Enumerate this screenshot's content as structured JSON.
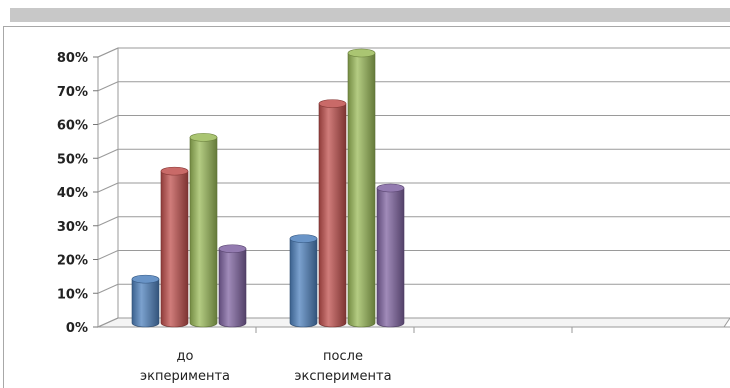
{
  "chart_data": {
    "type": "bar",
    "categories": [
      [
        "до",
        "экперимента"
      ],
      [
        "после",
        "эксперимента"
      ],
      [
        "",
        ""
      ],
      [
        "",
        ""
      ]
    ],
    "series": [
      {
        "color": "#4f81bd",
        "values": [
          13,
          25,
          null,
          null
        ]
      },
      {
        "color": "#c0504d",
        "values": [
          45,
          65,
          null,
          null
        ]
      },
      {
        "color": "#9bbb59",
        "values": [
          55,
          80,
          null,
          null
        ]
      },
      {
        "color": "#8064a2",
        "values": [
          22,
          40,
          null,
          null
        ]
      }
    ],
    "y_ticks": [
      "0%",
      "10%",
      "20%",
      "30%",
      "40%",
      "50%",
      "60%",
      "70%",
      "80%"
    ],
    "ylim": [
      0,
      80
    ],
    "grid": true,
    "legend": "none",
    "style": "3d-cylinder"
  }
}
